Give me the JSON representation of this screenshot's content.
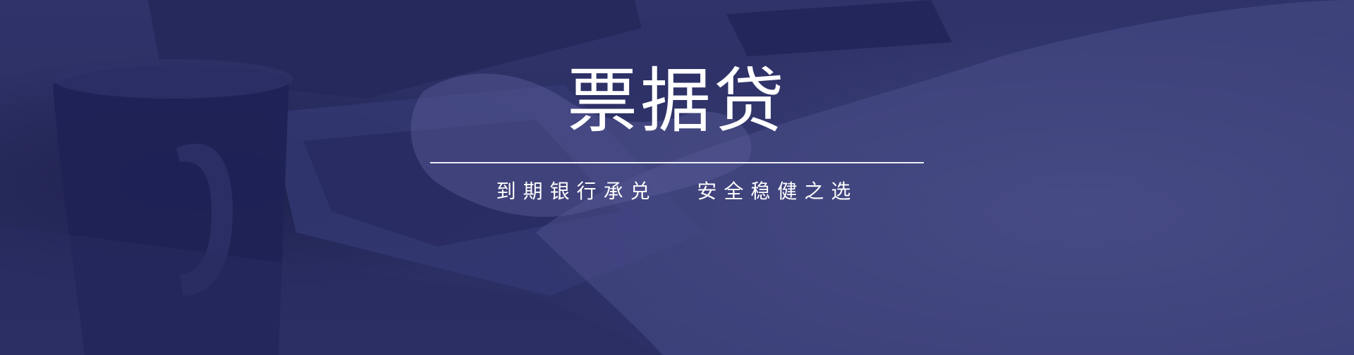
{
  "banner": {
    "title": "票据贷",
    "tagline": "到期银行承兑   安全稳健之选",
    "background_tint": "#2b2f63",
    "text_color": "#ffffff"
  }
}
